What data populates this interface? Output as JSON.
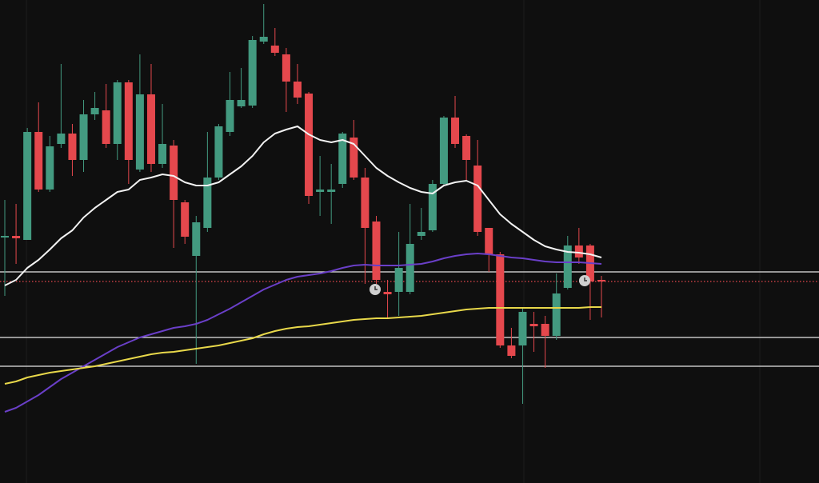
{
  "chart_data": {
    "type": "candlestick",
    "ylim": [
      0,
      604
    ],
    "up_color": "#439a80",
    "down_color": "#e5484d",
    "open": [
      307,
      309,
      304,
      439,
      367,
      424,
      437,
      404,
      461,
      466,
      424,
      501,
      392,
      486,
      399,
      422,
      351,
      284,
      319,
      382,
      439,
      471,
      472,
      552,
      547,
      536,
      502,
      487,
      364,
      364,
      374,
      432,
      382,
      327,
      239,
      239,
      239,
      309,
      316,
      374,
      457,
      434,
      397,
      319,
      286,
      172,
      172,
      199,
      199,
      184,
      244,
      297,
      297,
      254
    ],
    "high": [
      354,
      349,
      444,
      476,
      434,
      524,
      449,
      479,
      489,
      499,
      504,
      504,
      536,
      524,
      474,
      429,
      354,
      334,
      439,
      449,
      514,
      519,
      559,
      599,
      569,
      544,
      524,
      489,
      409,
      399,
      439,
      454,
      394,
      334,
      254,
      314,
      349,
      344,
      379,
      459,
      484,
      436,
      429,
      319,
      289,
      194,
      219,
      214,
      209,
      262,
      309,
      319,
      299,
      259
    ],
    "low": [
      234,
      274,
      304,
      364,
      364,
      419,
      384,
      389,
      454,
      419,
      404,
      374,
      389,
      389,
      394,
      294,
      299,
      149,
      314,
      379,
      434,
      469,
      469,
      549,
      534,
      464,
      474,
      349,
      334,
      324,
      369,
      379,
      249,
      249,
      206,
      209,
      236,
      304,
      314,
      372,
      419,
      379,
      309,
      264,
      169,
      156,
      99,
      164,
      144,
      179,
      242,
      274,
      204,
      207
    ],
    "close": [
      309,
      306,
      439,
      367,
      421,
      437,
      404,
      461,
      469,
      424,
      501,
      404,
      486,
      399,
      424,
      354,
      308,
      326,
      382,
      446,
      479,
      479,
      554,
      558,
      538,
      502,
      482,
      359,
      367,
      367,
      437,
      382,
      319,
      254,
      236,
      269,
      299,
      314,
      374,
      457,
      424,
      404,
      314,
      286,
      172,
      159,
      214,
      196,
      184,
      237,
      297,
      282,
      252,
      252
    ],
    "lines": [
      {
        "color": "#f2f2f2",
        "values": [
          247,
          254,
          269,
          279,
          292,
          306,
          316,
          332,
          344,
          354,
          364,
          367,
          379,
          382,
          386,
          384,
          376,
          372,
          372,
          376,
          386,
          396,
          409,
          426,
          437,
          442,
          446,
          436,
          429,
          426,
          429,
          424,
          409,
          394,
          384,
          376,
          369,
          364,
          362,
          372,
          376,
          378,
          372,
          354,
          336,
          324,
          314,
          304,
          296,
          292,
          289,
          288,
          286,
          282
        ]
      },
      {
        "color": "#6a3fc8",
        "values": [
          89,
          94,
          102,
          110,
          120,
          130,
          138,
          146,
          154,
          162,
          170,
          176,
          182,
          186,
          190,
          194,
          196,
          199,
          204,
          211,
          218,
          226,
          234,
          242,
          248,
          254,
          258,
          260,
          262,
          265,
          269,
          272,
          273,
          272,
          272,
          272,
          273,
          274,
          277,
          281,
          284,
          286,
          287,
          286,
          284,
          282,
          281,
          279,
          277,
          276,
          276,
          276,
          275,
          274
        ]
      },
      {
        "color": "#e8d84a",
        "values": [
          124,
          127,
          132,
          135,
          138,
          140,
          142,
          144,
          146,
          149,
          152,
          155,
          158,
          161,
          163,
          164,
          166,
          168,
          170,
          172,
          175,
          178,
          181,
          186,
          190,
          193,
          195,
          196,
          198,
          200,
          202,
          204,
          205,
          206,
          206,
          207,
          208,
          209,
          211,
          213,
          215,
          217,
          218,
          219,
          219,
          219,
          219,
          219,
          219,
          219,
          219,
          219,
          220,
          220
        ]
      }
    ],
    "hlines": [
      {
        "value": 264,
        "color": "#e6e6e6",
        "style": "solid"
      },
      {
        "value": 182,
        "color": "#e6e6e6",
        "style": "solid"
      },
      {
        "value": 146,
        "color": "#e6e6e6",
        "style": "solid"
      },
      {
        "value": 252,
        "color": "#e5484d",
        "style": "dotted"
      }
    ]
  }
}
